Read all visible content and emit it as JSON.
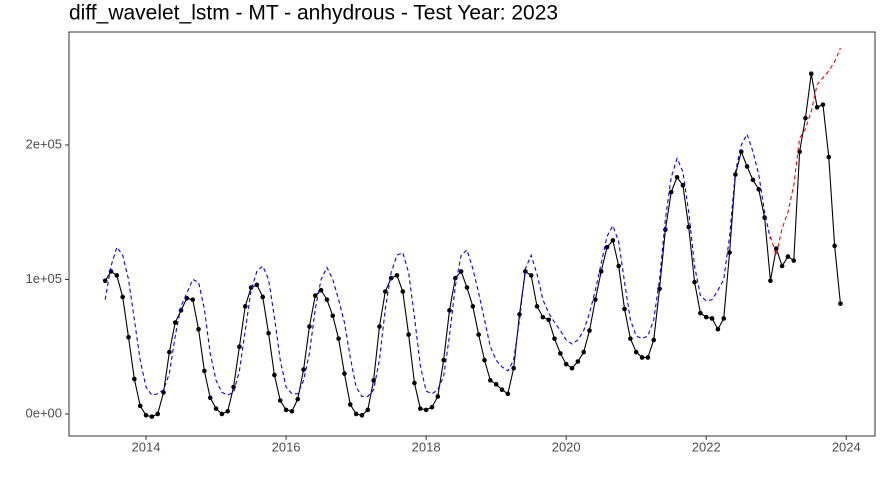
{
  "chart_data": {
    "type": "line",
    "title": "diff_wavelet_lstm - MT - anhydrous - Test Year: 2023",
    "x": [
      "2013-06",
      "2013-07",
      "2013-08",
      "2013-09",
      "2013-10",
      "2013-11",
      "2013-12",
      "2014-01",
      "2014-02",
      "2014-03",
      "2014-04",
      "2014-05",
      "2014-06",
      "2014-07",
      "2014-08",
      "2014-09",
      "2014-10",
      "2014-11",
      "2014-12",
      "2015-01",
      "2015-02",
      "2015-03",
      "2015-04",
      "2015-05",
      "2015-06",
      "2015-07",
      "2015-08",
      "2015-09",
      "2015-10",
      "2015-11",
      "2015-12",
      "2016-01",
      "2016-02",
      "2016-03",
      "2016-04",
      "2016-05",
      "2016-06",
      "2016-07",
      "2016-08",
      "2016-09",
      "2016-10",
      "2016-11",
      "2016-12",
      "2017-01",
      "2017-02",
      "2017-03",
      "2017-04",
      "2017-05",
      "2017-06",
      "2017-07",
      "2017-08",
      "2017-09",
      "2017-10",
      "2017-11",
      "2017-12",
      "2018-01",
      "2018-02",
      "2018-03",
      "2018-04",
      "2018-05",
      "2018-06",
      "2018-07",
      "2018-08",
      "2018-09",
      "2018-10",
      "2018-11",
      "2018-12",
      "2019-01",
      "2019-02",
      "2019-03",
      "2019-04",
      "2019-05",
      "2019-06",
      "2019-07",
      "2019-08",
      "2019-09",
      "2019-10",
      "2019-11",
      "2019-12",
      "2020-01",
      "2020-02",
      "2020-03",
      "2020-04",
      "2020-05",
      "2020-06",
      "2020-07",
      "2020-08",
      "2020-09",
      "2020-10",
      "2020-11",
      "2020-12",
      "2021-01",
      "2021-02",
      "2021-03",
      "2021-04",
      "2021-05",
      "2021-06",
      "2021-07",
      "2021-08",
      "2021-09",
      "2021-10",
      "2021-11",
      "2021-12",
      "2022-01",
      "2022-02",
      "2022-03",
      "2022-04",
      "2022-05",
      "2022-06",
      "2022-07",
      "2022-08",
      "2022-09",
      "2022-10",
      "2022-11",
      "2022-12",
      "2023-01",
      "2023-02",
      "2023-03",
      "2023-04",
      "2023-05",
      "2023-06",
      "2023-07",
      "2023-08",
      "2023-09",
      "2023-10",
      "2023-11",
      "2023-12"
    ],
    "series": [
      {
        "color": "#000000",
        "dash": false,
        "markers": true,
        "values": [
          99000,
          106000,
          103000,
          87000,
          57000,
          26000,
          6000,
          -1000,
          -2000,
          0,
          16000,
          46000,
          68000,
          77000,
          86000,
          85000,
          63000,
          32000,
          12000,
          4000,
          0,
          2000,
          20000,
          50000,
          80000,
          94000,
          96000,
          87000,
          60000,
          29000,
          10000,
          3000,
          2000,
          11000,
          33000,
          65000,
          88000,
          92000,
          85000,
          73000,
          56000,
          30000,
          7000,
          0,
          -1000,
          3000,
          25000,
          65000,
          91000,
          101000,
          103000,
          91000,
          59000,
          23000,
          4000,
          3000,
          5000,
          13000,
          40000,
          77000,
          101000,
          106000,
          94000,
          80000,
          59000,
          40000,
          25000,
          22000,
          18000,
          15000,
          34000,
          74000,
          106000,
          103000,
          80000,
          72000,
          70000,
          56000,
          45000,
          37000,
          34000,
          39000,
          46000,
          62000,
          85000,
          106000,
          124000,
          129000,
          110000,
          78000,
          56000,
          46000,
          42000,
          42000,
          55000,
          93000,
          137000,
          165000,
          176000,
          170000,
          139000,
          98000,
          75000,
          72000,
          71000,
          63000,
          71000,
          120000,
          178000,
          195000,
          184000,
          174000,
          167000,
          146000,
          99000,
          123000,
          110000,
          117000,
          114000,
          195000,
          220000,
          253000,
          228000,
          230000,
          191000,
          125000,
          82000
        ]
      },
      {
        "color": "#0000ff",
        "dash": true,
        "markers": false,
        "values": [
          85000,
          110000,
          124000,
          118000,
          100000,
          70000,
          40000,
          20000,
          14000,
          15000,
          18000,
          30000,
          58000,
          80000,
          90000,
          100000,
          98000,
          78000,
          45000,
          25000,
          16000,
          14000,
          16000,
          32000,
          62000,
          92000,
          106000,
          110000,
          100000,
          72000,
          40000,
          20000,
          15000,
          15000,
          25000,
          45000,
          78000,
          100000,
          109000,
          100000,
          85000,
          68000,
          42000,
          20000,
          13000,
          13000,
          18000,
          40000,
          78000,
          105000,
          118000,
          120000,
          105000,
          72000,
          36000,
          17000,
          15000,
          18000,
          28000,
          58000,
          95000,
          118000,
          122000,
          108000,
          90000,
          70000,
          50000,
          40000,
          35000,
          32000,
          40000,
          70000,
          108000,
          118000,
          104000,
          85000,
          75000,
          68000,
          62000,
          55000,
          52000,
          55000,
          62000,
          75000,
          92000,
          112000,
          132000,
          140000,
          128000,
          98000,
          70000,
          58000,
          56000,
          58000,
          70000,
          100000,
          145000,
          176000,
          190000,
          180000,
          150000,
          110000,
          88000,
          84000,
          85000,
          92000,
          100000,
          132000,
          180000,
          200000,
          208000,
          195000,
          178000,
          150000,
          130000,
          null,
          null,
          null,
          null,
          null,
          null,
          null,
          null,
          null,
          null,
          null,
          null
        ]
      },
      {
        "color": "#ff0000",
        "dash": true,
        "markers": false,
        "values": [
          null,
          null,
          null,
          null,
          null,
          null,
          null,
          null,
          null,
          null,
          null,
          null,
          null,
          null,
          null,
          null,
          null,
          null,
          null,
          null,
          null,
          null,
          null,
          null,
          null,
          null,
          null,
          null,
          null,
          null,
          null,
          null,
          null,
          null,
          null,
          null,
          null,
          null,
          null,
          null,
          null,
          null,
          null,
          null,
          null,
          null,
          null,
          null,
          null,
          null,
          null,
          null,
          null,
          null,
          null,
          null,
          null,
          null,
          null,
          null,
          null,
          null,
          null,
          null,
          null,
          null,
          null,
          null,
          null,
          null,
          null,
          null,
          null,
          null,
          null,
          null,
          null,
          null,
          null,
          null,
          null,
          null,
          null,
          null,
          null,
          null,
          null,
          null,
          null,
          null,
          null,
          null,
          null,
          null,
          null,
          null,
          null,
          null,
          null,
          null,
          null,
          null,
          null,
          null,
          null,
          null,
          null,
          null,
          null,
          null,
          null,
          null,
          null,
          null,
          132000,
          118000,
          138000,
          150000,
          170000,
          205000,
          212000,
          225000,
          245000,
          250000,
          255000,
          262000,
          272000
        ]
      }
    ],
    "xlim": [
      2012.9,
      2024.41
    ],
    "xticks": [
      2014,
      2016,
      2018,
      2020,
      2022,
      2024
    ],
    "ylim": [
      -16400,
      284000
    ],
    "yticks": [
      {
        "value": 0,
        "label": "0e+00"
      },
      {
        "value": 100000,
        "label": "1e+05"
      },
      {
        "value": 200000,
        "label": "2e+05"
      }
    ],
    "grid": false
  }
}
